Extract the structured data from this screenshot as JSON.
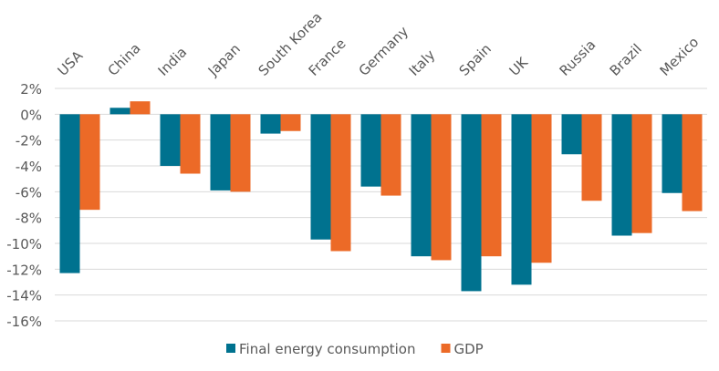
{
  "chart_data": {
    "type": "bar",
    "title": "",
    "xlabel": "",
    "ylabel": "",
    "ylim": [
      -16,
      2
    ],
    "ytick_step": 2,
    "y_format": "percent",
    "grid": true,
    "legend_position": "bottom",
    "categories": [
      "USA",
      "China",
      "India",
      "Japan",
      "South Korea",
      "France",
      "Germany",
      "Italy",
      "Spain",
      "UK",
      "Russia",
      "Brazil",
      "Mexico"
    ],
    "series": [
      {
        "name": "Final energy consumption",
        "color": "#00728F",
        "values": [
          -12.3,
          0.5,
          -4.0,
          -5.9,
          -1.5,
          -9.7,
          -5.6,
          -11.0,
          -13.7,
          -13.2,
          -3.1,
          -9.4,
          -6.1
        ]
      },
      {
        "name": "GDP",
        "color": "#EC6A27",
        "values": [
          -7.4,
          1.0,
          -4.6,
          -6.0,
          -1.3,
          -10.6,
          -6.3,
          -11.3,
          -11.0,
          -11.5,
          -6.7,
          -9.2,
          -7.5
        ]
      }
    ]
  }
}
